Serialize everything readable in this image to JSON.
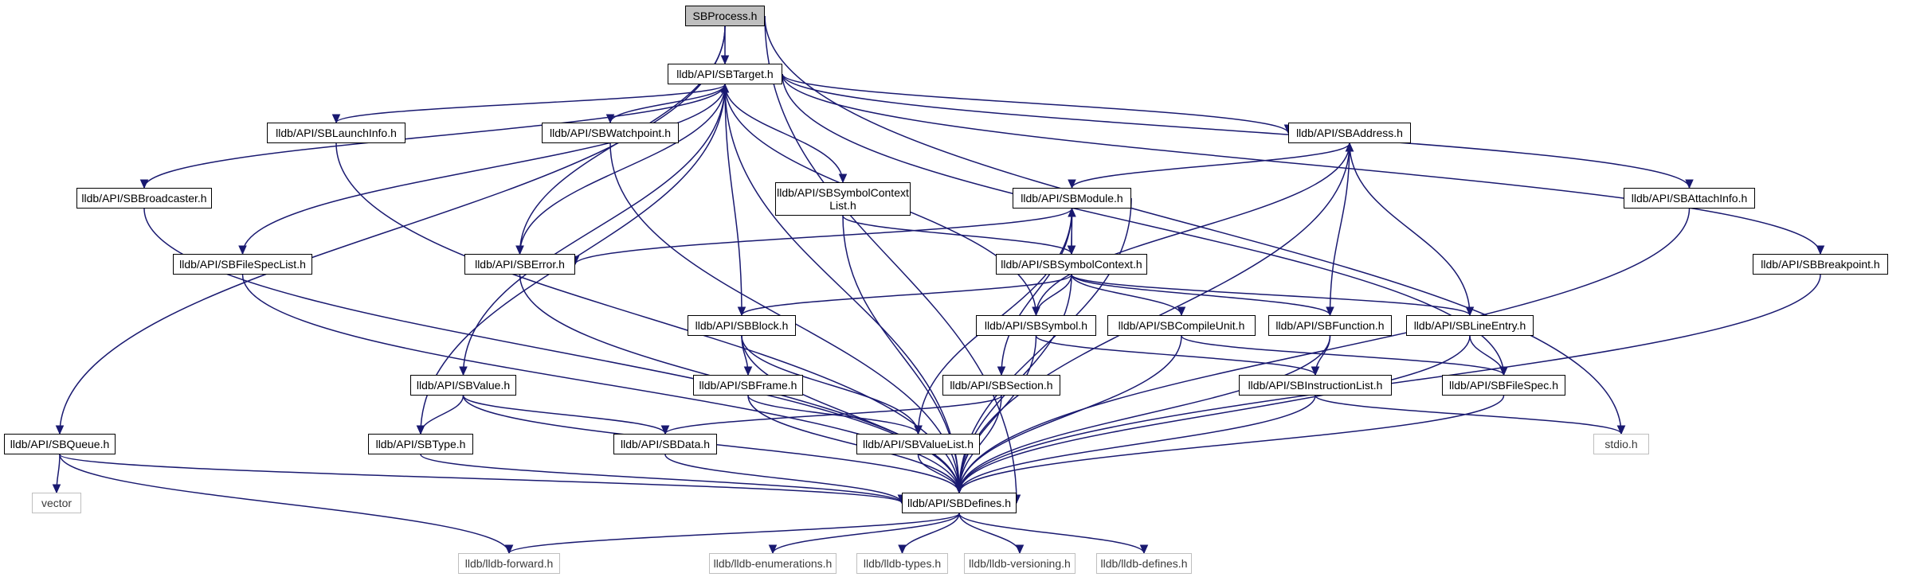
{
  "colors": {
    "edge": "#191970",
    "node_border": "#000000",
    "root_fill": "#bfbfbf",
    "system_border": "#bfbfbf"
  },
  "nodes": {
    "sbprocess": "SBProcess.h",
    "sbtarget": "lldb/API/SBTarget.h",
    "sblaunchinfo": "lldb/API/SBLaunchInfo.h",
    "sbwatchpoint": "lldb/API/SBWatchpoint.h",
    "sbaddress": "lldb/API/SBAddress.h",
    "sbbroadcaster": "lldb/API/SBBroadcaster.h",
    "sbsymbolcontextlist": "lldb/API/SBSymbolContext\nList.h",
    "sbmodule": "lldb/API/SBModule.h",
    "sbattachinfo": "lldb/API/SBAttachInfo.h",
    "sbfilespeclist": "lldb/API/SBFileSpecList.h",
    "sberror": "lldb/API/SBError.h",
    "sbsymbolcontext": "lldb/API/SBSymbolContext.h",
    "sbbreakpoint": "lldb/API/SBBreakpoint.h",
    "sbblock": "lldb/API/SBBlock.h",
    "sbsymbol": "lldb/API/SBSymbol.h",
    "sbcompileunit": "lldb/API/SBCompileUnit.h",
    "sbfunction": "lldb/API/SBFunction.h",
    "sblineentry": "lldb/API/SBLineEntry.h",
    "sbvalue": "lldb/API/SBValue.h",
    "sbframe": "lldb/API/SBFrame.h",
    "sbsection": "lldb/API/SBSection.h",
    "sbinstructionlist": "lldb/API/SBInstructionList.h",
    "sbfilespec": "lldb/API/SBFileSpec.h",
    "sbqueue": "lldb/API/SBQueue.h",
    "sbtype": "lldb/API/SBType.h",
    "sbdata": "lldb/API/SBData.h",
    "sbvaluelist": "lldb/API/SBValueList.h",
    "stdio": "stdio.h",
    "vector": "vector",
    "sbdefines": "lldb/API/SBDefines.h",
    "lldbforward": "lldb/lldb-forward.h",
    "lldbenumerations": "lldb/lldb-enumerations.h",
    "lldbtypes": "lldb/lldb-types.h",
    "lldbversioning": "lldb/lldb-versioning.h",
    "lldbdefines": "lldb/lldb-defines.h"
  }
}
